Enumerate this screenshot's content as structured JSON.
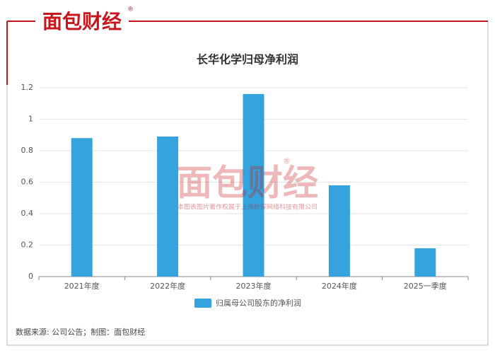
{
  "logo": {
    "text": "面包财经",
    "mark": "®"
  },
  "watermark": {
    "logo": "面包财经",
    "mark": "®",
    "notice": "本图表图片著作权属于上海妙探网络科技有限公司"
  },
  "chart_data": {
    "type": "bar",
    "title": "长华化学归母净利润",
    "categories": [
      "2021年度",
      "2022年度",
      "2023年度",
      "2024年度",
      "2025一季度"
    ],
    "series": [
      {
        "name": "归属母公司股东的净利润",
        "color": "#35a4de",
        "values": [
          0.88,
          0.89,
          1.16,
          0.58,
          0.18
        ]
      }
    ],
    "ylim": [
      0,
      1.2
    ],
    "yticks": [
      0,
      0.2,
      0.4,
      0.6,
      0.8,
      1,
      1.2
    ],
    "grid": true,
    "legend": "bottom"
  },
  "source": "数据来源: 公司公告；制图：面包财经"
}
